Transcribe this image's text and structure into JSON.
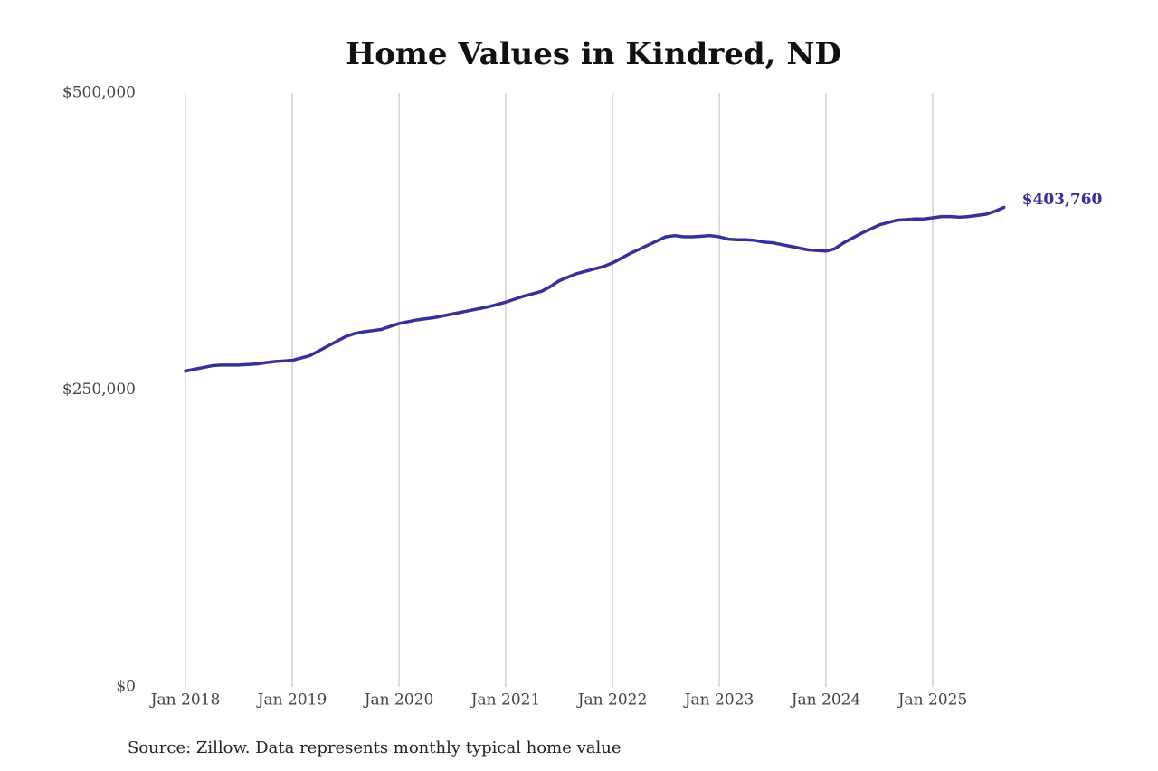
{
  "chart_data": {
    "type": "line",
    "title": "Home Values in Kindred, ND",
    "source": "Source: Zillow. Data represents monthly typical home value",
    "color": "#35309a",
    "grid": true,
    "x": [
      "2018-01",
      "2018-02",
      "2018-03",
      "2018-04",
      "2018-05",
      "2018-06",
      "2018-07",
      "2018-08",
      "2018-09",
      "2018-10",
      "2018-11",
      "2018-12",
      "2019-01",
      "2019-02",
      "2019-03",
      "2019-04",
      "2019-05",
      "2019-06",
      "2019-07",
      "2019-08",
      "2019-09",
      "2019-10",
      "2019-11",
      "2019-12",
      "2020-01",
      "2020-02",
      "2020-03",
      "2020-04",
      "2020-05",
      "2020-06",
      "2020-07",
      "2020-08",
      "2020-09",
      "2020-10",
      "2020-11",
      "2020-12",
      "2021-01",
      "2021-02",
      "2021-03",
      "2021-04",
      "2021-05",
      "2021-06",
      "2021-07",
      "2021-08",
      "2021-09",
      "2021-10",
      "2021-11",
      "2021-12",
      "2022-01",
      "2022-02",
      "2022-03",
      "2022-04",
      "2022-05",
      "2022-06",
      "2022-07",
      "2022-08",
      "2022-09",
      "2022-10",
      "2022-11",
      "2022-12",
      "2023-01",
      "2023-02",
      "2023-03",
      "2023-04",
      "2023-05",
      "2023-06",
      "2023-07",
      "2023-08",
      "2023-09",
      "2023-10",
      "2023-11",
      "2023-12",
      "2024-01",
      "2024-02",
      "2024-03",
      "2024-04",
      "2024-05",
      "2024-06",
      "2024-07",
      "2024-08",
      "2024-09",
      "2024-10",
      "2024-11",
      "2024-12",
      "2025-01",
      "2025-02",
      "2025-03",
      "2025-04",
      "2025-05",
      "2025-06",
      "2025-07",
      "2025-08",
      "2025-09"
    ],
    "values": [
      266000,
      267500,
      269000,
      270500,
      271000,
      271000,
      271000,
      271500,
      272000,
      273000,
      274000,
      274500,
      275000,
      277000,
      279000,
      283000,
      287000,
      291000,
      295000,
      297500,
      299000,
      300000,
      301000,
      303500,
      306000,
      307500,
      309000,
      310000,
      311000,
      312500,
      314000,
      315500,
      317000,
      318500,
      320000,
      322000,
      324000,
      326500,
      329000,
      331000,
      333000,
      337000,
      342000,
      345000,
      348000,
      350000,
      352000,
      354000,
      357000,
      361000,
      365000,
      368500,
      372000,
      375500,
      379000,
      380000,
      379000,
      379000,
      379500,
      380000,
      379000,
      377000,
      376500,
      376500,
      376000,
      374500,
      374000,
      372500,
      371000,
      369500,
      368000,
      367500,
      367000,
      369000,
      374000,
      378000,
      382000,
      385500,
      389000,
      391000,
      393000,
      393500,
      394000,
      394000,
      395000,
      396000,
      396000,
      395500,
      396000,
      397000,
      398000,
      400500,
      403760
    ],
    "value_labels": [
      null,
      null,
      null,
      null,
      null,
      null,
      null,
      null,
      null,
      null,
      null,
      null,
      null,
      null,
      null,
      null,
      null,
      null,
      null,
      null,
      null,
      null,
      null,
      null,
      null,
      null,
      null,
      null,
      null,
      null,
      null,
      null,
      null,
      null,
      null,
      null,
      null,
      null,
      null,
      null,
      null,
      null,
      null,
      null,
      null,
      null,
      null,
      null,
      null,
      null,
      null,
      null,
      null,
      null,
      null,
      null,
      null,
      null,
      null,
      null,
      null,
      null,
      null,
      null,
      null,
      null,
      null,
      null,
      null,
      null,
      null,
      null,
      null,
      null,
      null,
      null,
      null,
      null,
      null,
      null,
      null,
      null,
      null,
      null,
      null,
      null,
      null,
      null,
      null,
      null,
      null,
      null,
      "$403,760"
    ],
    "xticks": [
      {
        "value": "2018-01",
        "label": "Jan 2018"
      },
      {
        "value": "2019-01",
        "label": "Jan 2019"
      },
      {
        "value": "2020-01",
        "label": "Jan 2020"
      },
      {
        "value": "2021-01",
        "label": "Jan 2021"
      },
      {
        "value": "2022-01",
        "label": "Jan 2022"
      },
      {
        "value": "2023-01",
        "label": "Jan 2023"
      },
      {
        "value": "2024-01",
        "label": "Jan 2024"
      },
      {
        "value": "2025-01",
        "label": "Jan 2025"
      }
    ],
    "ylim": [
      0,
      500000
    ],
    "yticks": [
      {
        "value": 0,
        "label": "$0"
      },
      {
        "value": 250000,
        "label": "$250,000"
      },
      {
        "value": 500000,
        "label": "$500,000"
      }
    ]
  }
}
